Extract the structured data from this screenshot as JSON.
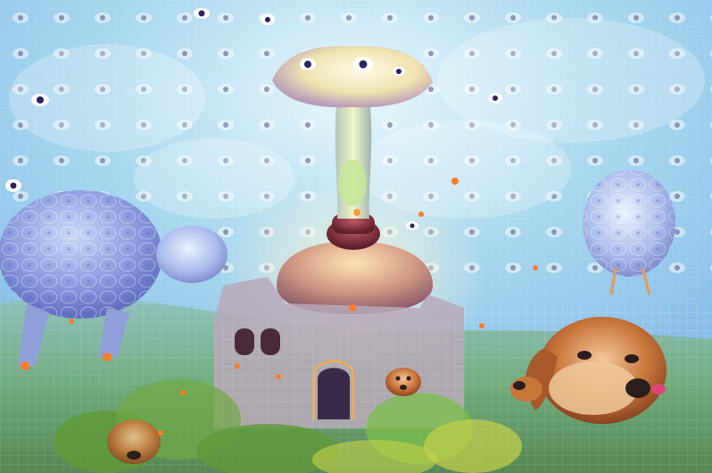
{
  "image": {
    "kind": "deep-dream-style psychedelic artwork",
    "palette": {
      "sky_light": "#dff4fb",
      "sky_blue": "#8cc8ea",
      "sky_deep": "#6aa6de",
      "lavender": "#9aa6e8",
      "tower_gold": "#e6c070",
      "tower_rose": "#c98a8e",
      "tower_maroon": "#7a2c3a",
      "cap_cream": "#f3ecc8",
      "stem_green": "#c7e79a",
      "foliage_green": "#5f9a3a",
      "foliage_yellow": "#c6d24a",
      "dog_fur": "#c06a2e",
      "dog_fur_light": "#f0c89a",
      "dog_nose": "#2a1d1c",
      "dog_tongue": "#e0457a",
      "ember": "#ff7a2a",
      "eye_dark": "#2a2460"
    }
  }
}
